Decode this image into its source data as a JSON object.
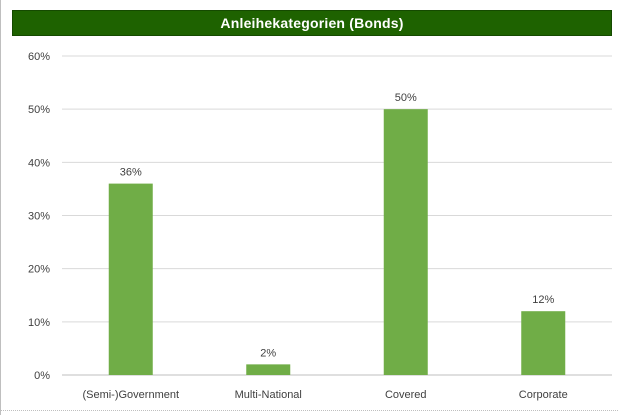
{
  "chart_data": {
    "type": "bar",
    "title": "Anleihekategorien (Bonds)",
    "categories": [
      "(Semi-)Government",
      "Multi-National",
      "Covered",
      "Corporate"
    ],
    "values": [
      36,
      2,
      50,
      12
    ],
    "data_labels": [
      "36%",
      "2%",
      "50%",
      "12%"
    ],
    "ylim": [
      0,
      60
    ],
    "yticks": [
      "0%",
      "10%",
      "20%",
      "30%",
      "40%",
      "50%",
      "60%"
    ],
    "ytick_values": [
      0,
      10,
      20,
      30,
      40,
      50,
      60
    ],
    "xlabel": "",
    "ylabel": "",
    "grid": true,
    "legend": "none",
    "bar_color": "#70ad47",
    "title_bg_color": "#1e6200"
  }
}
